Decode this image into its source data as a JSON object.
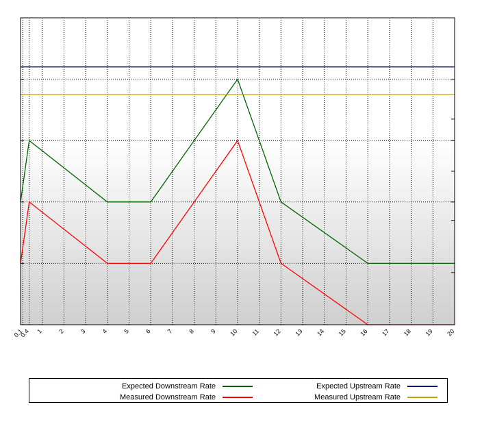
{
  "chart_data": {
    "type": "line",
    "x": [
      0,
      0.4,
      4,
      6,
      10,
      12,
      16,
      20
    ],
    "x_tick_labels": [
      "0.1",
      "0.4",
      "1",
      "2",
      "3",
      "4",
      "5",
      "6",
      "7",
      "8",
      "9",
      "10",
      "11",
      "12",
      "13",
      "14",
      "15",
      "16",
      "17",
      "18",
      "19",
      "20"
    ],
    "ylim": [
      0,
      5
    ],
    "grid": true,
    "legend_position": "bottom",
    "series": [
      {
        "name": "Expected Downstream Rate",
        "color": "#006400",
        "values": [
          2,
          3,
          2,
          2,
          4,
          2,
          1,
          1
        ]
      },
      {
        "name": "Measured Downstream Rate",
        "color": "#ff0000",
        "values": [
          1,
          2,
          1,
          1,
          3,
          1,
          0,
          0
        ]
      },
      {
        "name": "Expected Upstream Rate",
        "color": "#000080",
        "constant": 4.2
      },
      {
        "name": "Measured Upstream Rate",
        "color": "#c8a000",
        "constant": 3.75
      }
    ]
  },
  "legend": [
    {
      "label": "Expected Downstream Rate",
      "color": "#006400"
    },
    {
      "label": "Expected Upstream Rate",
      "color": "#000080"
    },
    {
      "label": "Measured Downstream Rate",
      "color": "#ff0000"
    },
    {
      "label": "Measured Upstream Rate",
      "color": "#c8a000"
    }
  ]
}
